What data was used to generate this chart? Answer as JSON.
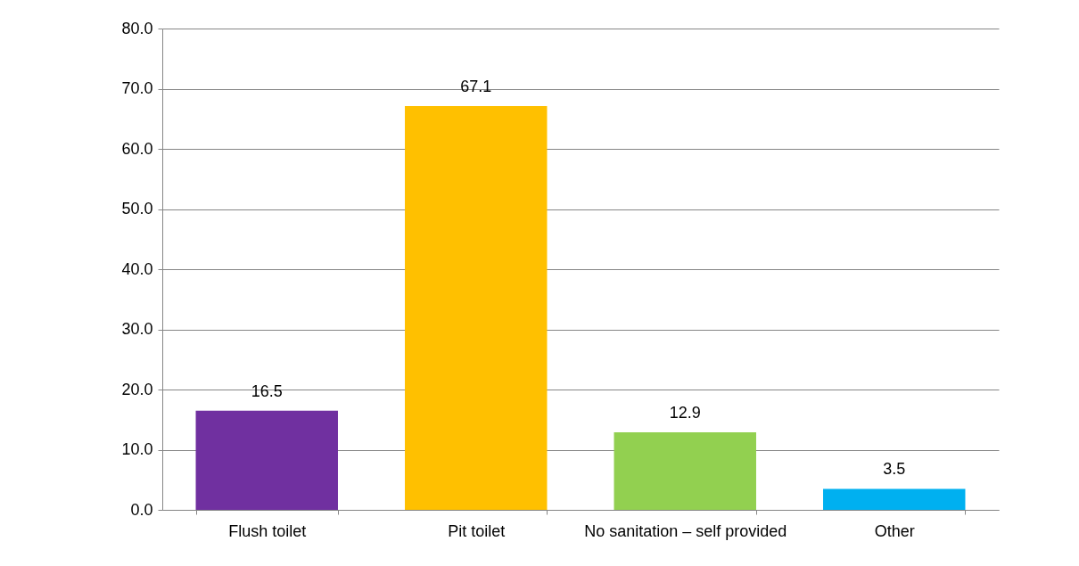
{
  "chart_data": {
    "type": "bar",
    "categories": [
      "Flush toilet",
      "Pit toilet",
      "No sanitation – self provided",
      "Other"
    ],
    "values": [
      16.5,
      67.1,
      12.9,
      3.5
    ],
    "colors": [
      "#7030a0",
      "#ffc000",
      "#92d050",
      "#00b0f0"
    ],
    "ylim": [
      0,
      80
    ],
    "yticks": [
      {
        "value": 0,
        "label": "0.0"
      },
      {
        "value": 10,
        "label": "10.0"
      },
      {
        "value": 20,
        "label": "20.0"
      },
      {
        "value": 30,
        "label": "30.0"
      },
      {
        "value": 40,
        "label": "40.0"
      },
      {
        "value": 50,
        "label": "50.0"
      },
      {
        "value": 60,
        "label": "60.0"
      },
      {
        "value": 70,
        "label": "70.0"
      },
      {
        "value": 80,
        "label": "80.0"
      }
    ],
    "grid": "y",
    "data_labels": true
  }
}
